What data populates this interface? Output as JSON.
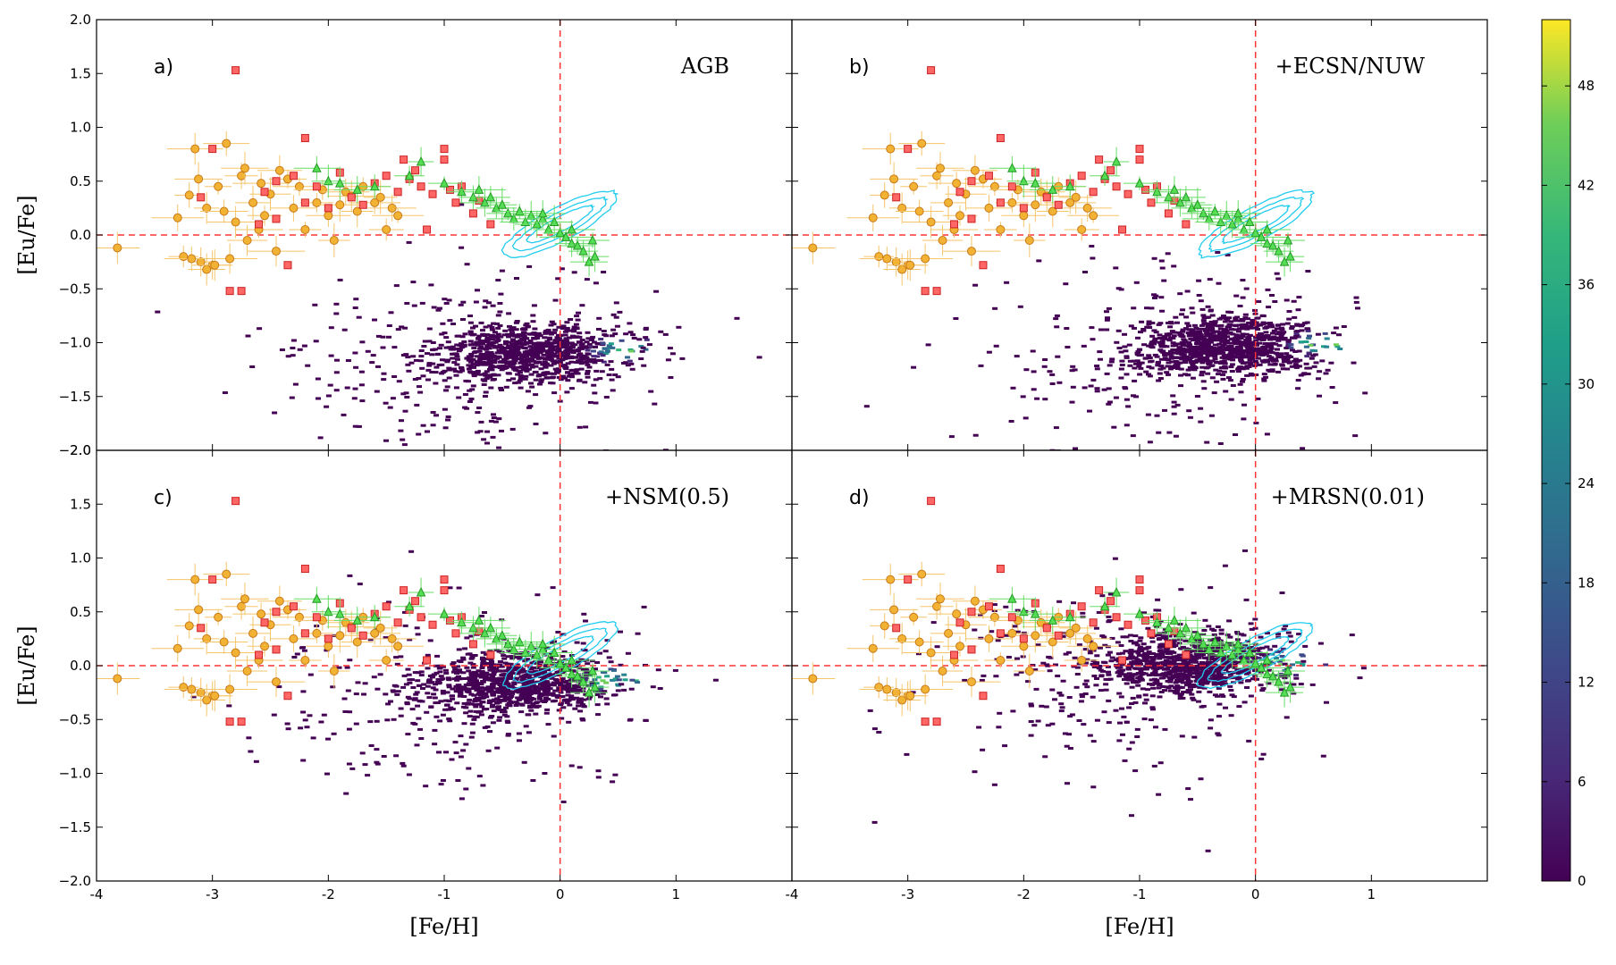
{
  "chart_data": {
    "type": "scatter",
    "layout": "2x2 panels with shared colorbar",
    "panels": [
      {
        "id": "a",
        "letter": "a)",
        "label": "AGB",
        "model_center": [
          0.3,
          -1.05
        ]
      },
      {
        "id": "b",
        "letter": "b)",
        "label": "+ECSN/NUW",
        "model_center": [
          0.3,
          -1.0
        ]
      },
      {
        "id": "c",
        "letter": "c)",
        "label": "+NSM(0.5)",
        "model_center": [
          0.2,
          -0.12
        ]
      },
      {
        "id": "d",
        "letter": "d)",
        "label": "+MRSN(0.01)",
        "model_center": [
          0.0,
          0.05
        ]
      }
    ],
    "xlabel": "[Fe/H]",
    "ylabel": "[Eu/Fe]",
    "xlim": [
      -4,
      2
    ],
    "ylim": [
      -2.0,
      2.0
    ],
    "xticks": [
      -4,
      -3,
      -2,
      -1,
      0,
      1
    ],
    "xtick_labels": [
      "-4",
      "-3",
      "-2",
      "-1",
      "0",
      "1"
    ],
    "yticks": [
      -2.0,
      -1.5,
      -1.0,
      -0.5,
      0.0,
      0.5,
      1.0,
      1.5,
      2.0
    ],
    "ytick_labels": [
      "−2.0",
      "−1.5",
      "−1.0",
      "−0.5",
      "0.0",
      "0.5",
      "1.0",
      "1.5",
      "2.0"
    ],
    "reference_lines": {
      "x": 0,
      "y": 0,
      "color": "#ff3333",
      "style": "dashed"
    },
    "colorbar": {
      "min": 0,
      "max": 52,
      "ticks": [
        0,
        6,
        12,
        18,
        24,
        30,
        36,
        42,
        48
      ],
      "tick_labels": [
        "0",
        "6",
        "12",
        "18",
        "24",
        "30",
        "36",
        "42",
        "48"
      ],
      "colormap": "viridis"
    },
    "series": [
      {
        "name": "halo stars (circles)",
        "marker": "circle",
        "color": "#f2b233",
        "edge": "#c87a1a",
        "points": [
          [
            -3.82,
            -0.12
          ],
          [
            -3.3,
            0.16
          ],
          [
            -3.2,
            0.37
          ],
          [
            -3.15,
            0.8
          ],
          [
            -3.12,
            0.52
          ],
          [
            -3.05,
            0.25
          ],
          [
            -3.0,
            -0.28
          ],
          [
            -2.95,
            0.45
          ],
          [
            -2.9,
            0.22
          ],
          [
            -2.88,
            0.85
          ],
          [
            -2.85,
            -0.22
          ],
          [
            -2.8,
            0.12
          ],
          [
            -2.75,
            0.55
          ],
          [
            -2.72,
            0.62
          ],
          [
            -2.7,
            -0.05
          ],
          [
            -2.65,
            0.3
          ],
          [
            -2.6,
            0.05
          ],
          [
            -2.58,
            0.48
          ],
          [
            -2.55,
            0.18
          ],
          [
            -2.5,
            0.38
          ],
          [
            -2.45,
            -0.15
          ],
          [
            -2.42,
            0.6
          ],
          [
            -2.35,
            0.52
          ],
          [
            -2.3,
            0.25
          ],
          [
            -2.25,
            0.45
          ],
          [
            -2.2,
            0.05
          ],
          [
            -2.1,
            0.3
          ],
          [
            -2.05,
            0.42
          ],
          [
            -2.0,
            0.18
          ],
          [
            -1.95,
            -0.05
          ],
          [
            -1.9,
            0.28
          ],
          [
            -1.85,
            0.4
          ],
          [
            -1.8,
            0.36
          ],
          [
            -1.75,
            0.22
          ],
          [
            -1.7,
            0.45
          ],
          [
            -1.6,
            0.3
          ],
          [
            -1.55,
            0.35
          ],
          [
            -1.5,
            0.05
          ],
          [
            -1.45,
            0.25
          ],
          [
            -1.4,
            0.18
          ],
          [
            -3.25,
            -0.2
          ],
          [
            -3.1,
            -0.25
          ],
          [
            -3.05,
            -0.32
          ],
          [
            -3.18,
            -0.22
          ],
          [
            -2.98,
            -0.28
          ]
        ]
      },
      {
        "name": "stars (red squares)",
        "marker": "square",
        "color": "#ff6666",
        "edge": "#cc2222",
        "points": [
          [
            -2.8,
            1.53
          ],
          [
            -2.2,
            0.9
          ],
          [
            -3.0,
            0.8
          ],
          [
            -3.1,
            0.35
          ],
          [
            -2.85,
            -0.52
          ],
          [
            -2.75,
            -0.52
          ],
          [
            -2.6,
            0.1
          ],
          [
            -2.55,
            0.4
          ],
          [
            -2.45,
            0.15
          ],
          [
            -2.35,
            -0.28
          ],
          [
            -2.3,
            0.55
          ],
          [
            -2.2,
            0.3
          ],
          [
            -2.1,
            0.45
          ],
          [
            -2.0,
            0.25
          ],
          [
            -1.9,
            0.58
          ],
          [
            -1.8,
            0.35
          ],
          [
            -1.7,
            0.28
          ],
          [
            -1.6,
            0.48
          ],
          [
            -1.5,
            0.55
          ],
          [
            -1.4,
            0.4
          ],
          [
            -1.35,
            0.7
          ],
          [
            -1.3,
            0.52
          ],
          [
            -1.25,
            0.6
          ],
          [
            -1.2,
            0.45
          ],
          [
            -1.1,
            0.38
          ],
          [
            -1.0,
            0.7
          ],
          [
            -0.95,
            0.42
          ],
          [
            -0.9,
            0.3
          ],
          [
            -0.85,
            0.45
          ],
          [
            -0.75,
            0.2
          ],
          [
            -0.7,
            0.32
          ],
          [
            -1.0,
            0.8
          ],
          [
            -0.6,
            0.1
          ],
          [
            -2.45,
            0.5
          ],
          [
            -1.15,
            0.05
          ]
        ]
      },
      {
        "name": "disk stars (green triangles)",
        "marker": "triangle",
        "color": "#55dd55",
        "edge": "#229922",
        "points": [
          [
            -2.1,
            0.62
          ],
          [
            -2.0,
            0.5
          ],
          [
            -1.9,
            0.48
          ],
          [
            -1.75,
            0.42
          ],
          [
            -1.6,
            0.45
          ],
          [
            -1.3,
            0.55
          ],
          [
            -1.2,
            0.68
          ],
          [
            -1.0,
            0.48
          ],
          [
            -0.85,
            0.4
          ],
          [
            -0.75,
            0.35
          ],
          [
            -0.65,
            0.3
          ],
          [
            -0.55,
            0.25
          ],
          [
            -0.45,
            0.2
          ],
          [
            -0.4,
            0.15
          ],
          [
            -0.35,
            0.22
          ],
          [
            -0.3,
            0.12
          ],
          [
            -0.25,
            0.18
          ],
          [
            -0.2,
            0.1
          ],
          [
            -0.15,
            0.15
          ],
          [
            -0.1,
            0.05
          ],
          [
            -0.05,
            0.12
          ],
          [
            0.0,
            0.02
          ],
          [
            0.05,
            -0.02
          ],
          [
            0.1,
            -0.08
          ],
          [
            0.15,
            -0.1
          ],
          [
            0.2,
            -0.15
          ],
          [
            0.25,
            -0.25
          ],
          [
            0.3,
            -0.2
          ],
          [
            -0.6,
            0.35
          ],
          [
            -0.5,
            0.28
          ],
          [
            -0.15,
            0.2
          ],
          [
            0.1,
            0.05
          ],
          [
            -0.7,
            0.42
          ],
          [
            0.28,
            -0.05
          ]
        ]
      }
    ],
    "contours": {
      "color": "#22ccee",
      "center": [
        0.0,
        0.1
      ],
      "levels": [
        {
          "ra": 0.55,
          "rb": 0.16
        },
        {
          "ra": 0.45,
          "rb": 0.11
        },
        {
          "ra": 0.32,
          "rb": 0.07
        }
      ],
      "angle_deg": -28
    }
  }
}
